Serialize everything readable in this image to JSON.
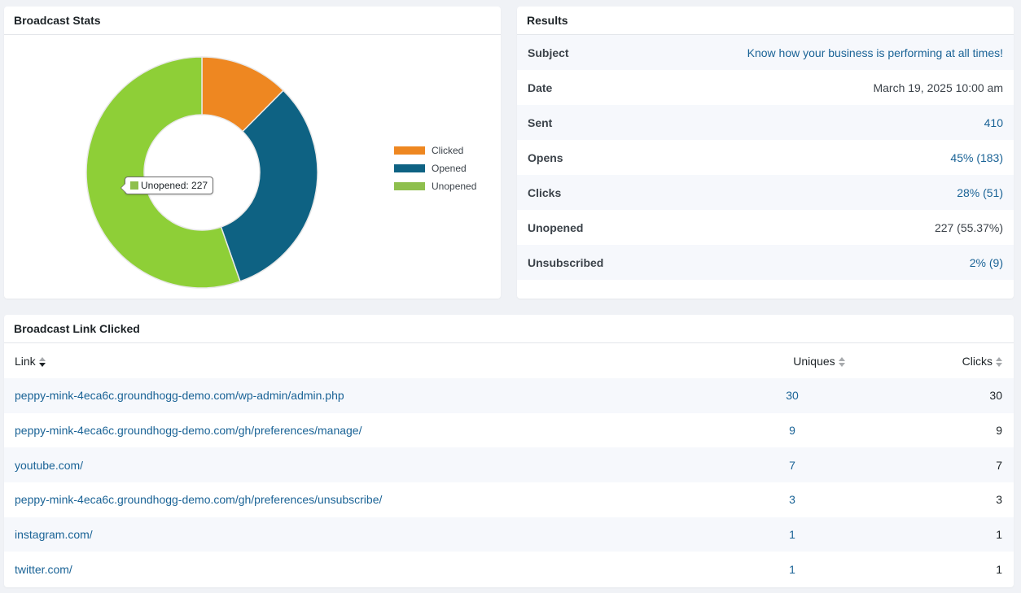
{
  "stats_panel": {
    "title": "Broadcast Stats",
    "tooltip": "Unopened: 227"
  },
  "chart_data": {
    "type": "pie",
    "categories": [
      "Clicked",
      "Opened",
      "Unopened"
    ],
    "values": [
      51,
      132,
      227
    ],
    "colors": [
      "#ee8721",
      "#0e6283",
      "#8ecf37"
    ],
    "legend_colors": [
      "#ee8721",
      "#0e6283",
      "#8ebf4d"
    ],
    "title": "",
    "legend_position": "right"
  },
  "results_panel": {
    "title": "Results",
    "rows": [
      {
        "label": "Subject",
        "value": "Know how your business is performing at all times!",
        "link": true
      },
      {
        "label": "Date",
        "value": "March 19, 2025 10:00 am",
        "link": false
      },
      {
        "label": "Sent",
        "value": "410",
        "link": true
      },
      {
        "label": "Opens",
        "value": "45% (183)",
        "link": true
      },
      {
        "label": "Clicks",
        "value": "28% (51)",
        "link": true
      },
      {
        "label": "Unopened",
        "value": "227 (55.37%)",
        "link": false
      },
      {
        "label": "Unsubscribed",
        "value": "2% (9)",
        "link": true
      }
    ]
  },
  "links_panel": {
    "title": "Broadcast Link Clicked",
    "columns": {
      "link": "Link",
      "uniques": "Uniques",
      "clicks": "Clicks"
    },
    "rows": [
      {
        "link": "peppy-mink-4eca6c.groundhogg-demo.com/wp-admin/admin.php",
        "uniques": "30",
        "clicks": "30"
      },
      {
        "link": "peppy-mink-4eca6c.groundhogg-demo.com/gh/preferences/manage/",
        "uniques": "9",
        "clicks": "9"
      },
      {
        "link": "youtube.com/",
        "uniques": "7",
        "clicks": "7"
      },
      {
        "link": "peppy-mink-4eca6c.groundhogg-demo.com/gh/preferences/unsubscribe/",
        "uniques": "3",
        "clicks": "3"
      },
      {
        "link": "instagram.com/",
        "uniques": "1",
        "clicks": "1"
      },
      {
        "link": "twitter.com/",
        "uniques": "1",
        "clicks": "1"
      }
    ]
  }
}
